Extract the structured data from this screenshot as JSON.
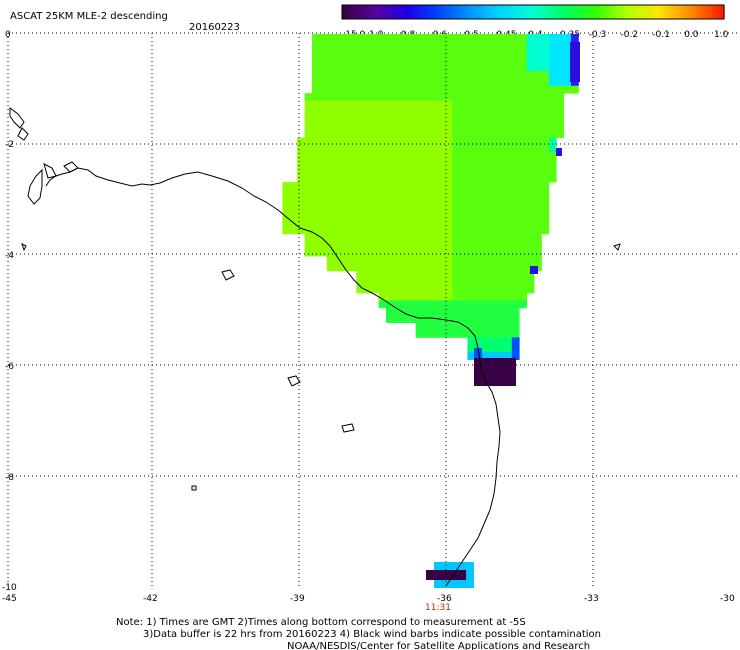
{
  "header": {
    "title": "ASCAT 25KM MLE-2 descending",
    "date": "20160223"
  },
  "colorbar": {
    "labels": [
      "-15.0",
      "-1.0",
      "-0.8",
      "-0.6",
      "-0.5",
      "-0.45",
      "-0.4",
      "-0.35",
      "-0.3",
      "-0.2",
      "-0.1",
      "0.0",
      "1.0"
    ],
    "colors": [
      "#3a0046",
      "#5a00a0",
      "#1c00e6",
      "#0046ff",
      "#0096ff",
      "#00d7ff",
      "#00ffd2",
      "#00ff64",
      "#32ff00",
      "#b4ff00",
      "#ffe600",
      "#ff8c00",
      "#ff1e00"
    ]
  },
  "axes": {
    "x_ticks": [
      "-45",
      "-42",
      "-39",
      "-36",
      "-33",
      "-30"
    ],
    "y_ticks": [
      "0",
      "-2",
      "-4",
      "-6",
      "-8",
      "-10"
    ],
    "x_range": [
      -45,
      -30
    ],
    "y_range": [
      -10,
      0
    ]
  },
  "time_label": "11:31",
  "footer": {
    "line1": "Note: 1) Times are GMT 2)Times along bottom correspond to measurement at -5S",
    "line2": "3)Data buffer is 22 hrs from 20160223 4) Black wind barbs indicate possible contamination",
    "line3": "NOAA/NESDIS/Center for Satellite Applications and Research"
  }
}
